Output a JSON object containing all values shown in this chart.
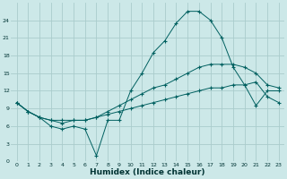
{
  "xlabel": "Humidex (Indice chaleur)",
  "bg_color": "#cce8e8",
  "grid_color": "#aacccc",
  "line_color": "#006060",
  "xlim": [
    -0.5,
    23.5
  ],
  "ylim": [
    0,
    27
  ],
  "xticks": [
    0,
    1,
    2,
    3,
    4,
    5,
    6,
    7,
    8,
    9,
    10,
    11,
    12,
    13,
    14,
    15,
    16,
    17,
    18,
    19,
    20,
    21,
    22,
    23
  ],
  "yticks": [
    0,
    3,
    6,
    9,
    12,
    15,
    18,
    21,
    24
  ],
  "line1_x": [
    0,
    1,
    2,
    3,
    4,
    5,
    6,
    7,
    8,
    9,
    10,
    11,
    12,
    13,
    14,
    15,
    16,
    17,
    18,
    19,
    20,
    21,
    22,
    23
  ],
  "line1_y": [
    10,
    8.5,
    7.5,
    6.0,
    5.5,
    6.0,
    5.5,
    1.0,
    7.0,
    7.0,
    12.0,
    15.0,
    18.5,
    20.5,
    23.5,
    25.5,
    25.5,
    24.0,
    21.0,
    16.0,
    13.0,
    9.5,
    12.0,
    12.0
  ],
  "line2_x": [
    0,
    1,
    2,
    3,
    4,
    5,
    6,
    7,
    8,
    9,
    10,
    11,
    12,
    13,
    14,
    15,
    16,
    17,
    18,
    19,
    20,
    21,
    22,
    23
  ],
  "line2_y": [
    10,
    8.5,
    7.5,
    7.0,
    7.0,
    7.0,
    7.0,
    7.5,
    8.0,
    8.5,
    9.0,
    9.5,
    10.0,
    10.5,
    11.0,
    11.5,
    12.0,
    12.5,
    12.5,
    13.0,
    13.0,
    13.5,
    11.0,
    10.0
  ],
  "line3_x": [
    0,
    1,
    2,
    3,
    4,
    5,
    6,
    7,
    8,
    9,
    10,
    11,
    12,
    13,
    14,
    15,
    16,
    17,
    18,
    19,
    20,
    21,
    22,
    23
  ],
  "line3_y": [
    10,
    8.5,
    7.5,
    7.0,
    6.5,
    7.0,
    7.0,
    7.5,
    8.5,
    9.5,
    10.5,
    11.5,
    12.5,
    13.0,
    14.0,
    15.0,
    16.0,
    16.5,
    16.5,
    16.5,
    16.0,
    15.0,
    13.0,
    12.5
  ]
}
